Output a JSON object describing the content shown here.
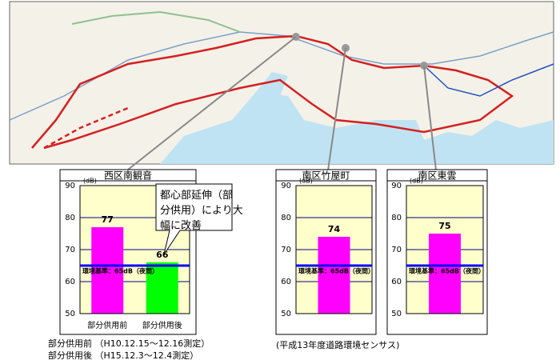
{
  "chart_data": [
    {
      "type": "bar",
      "title": "西区南観音",
      "y_label": "(dB)",
      "categories": [
        "部分供用前",
        "部分供用後"
      ],
      "values": [
        77,
        66
      ],
      "colors": [
        "#ff00ff",
        "#00ff00"
      ],
      "ylim": [
        50,
        90
      ],
      "yticks": [
        50,
        60,
        70,
        80,
        90
      ],
      "grid": true,
      "reference": {
        "value": 65,
        "label": "環境基準：65dB（夜間）"
      },
      "annotation": "都心部延伸（部分供用）により大幅に改善"
    },
    {
      "type": "bar",
      "title": "南区竹屋町",
      "y_label": "(dB)",
      "categories": [
        null
      ],
      "values": [
        74
      ],
      "colors": [
        "#ff00ff"
      ],
      "ylim": [
        50,
        90
      ],
      "yticks": [
        50,
        60,
        70,
        80,
        90
      ],
      "grid": true,
      "reference": {
        "value": 65,
        "label": "環境基準：65dB（夜間）"
      }
    },
    {
      "type": "bar",
      "title": "南区東雲",
      "y_label": "(dB)",
      "categories": [
        null
      ],
      "values": [
        75
      ],
      "colors": [
        "#ff00ff"
      ],
      "ylim": [
        50,
        90
      ],
      "yticks": [
        50,
        60,
        70,
        80,
        90
      ],
      "grid": true,
      "reference": {
        "value": 65,
        "label": "環境基準：65dB（夜間）"
      }
    }
  ],
  "notes": [
    "部分供用前 （H10.12.15～12.16測定）",
    "部分供用後 （H15.12.3～12.4測定）",
    "(平成13年度道路環境センサス)"
  ]
}
